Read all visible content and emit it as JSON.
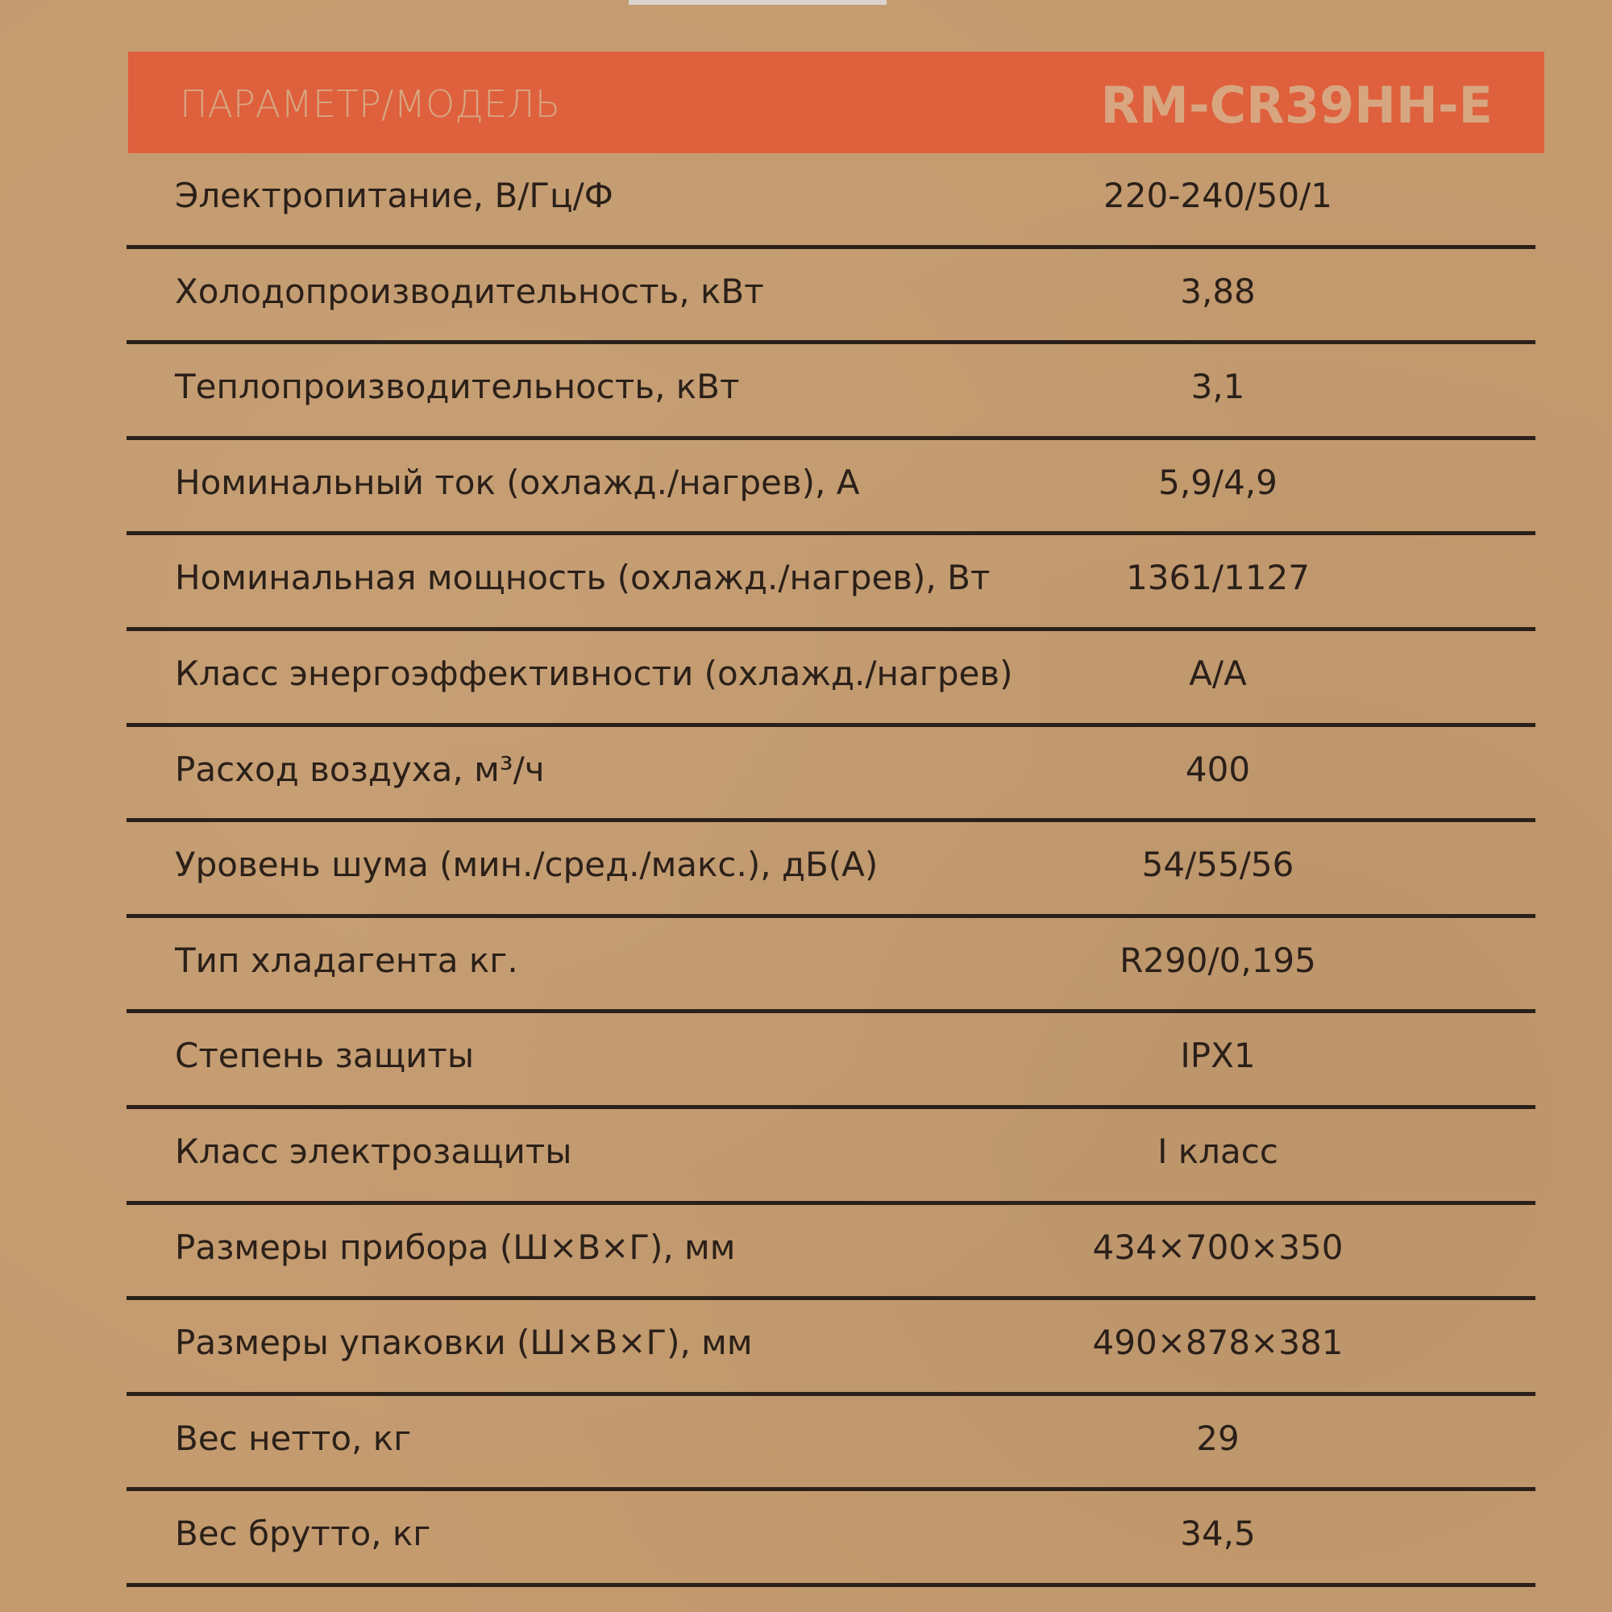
{
  "colors": {
    "background": "#c49b6f",
    "header": "#df603d",
    "header_text": "#d7a680",
    "text": "#2b2019"
  },
  "header": {
    "param_label": "ПАРАМЕТР/МОДЕЛЬ",
    "model": "RM-CR39HH-E"
  },
  "rows": [
    {
      "label": "Электропитание, В/Гц/Ф",
      "value": "220-240/50/1"
    },
    {
      "label": "Холодопроизводительность, кВт",
      "value": "3,88"
    },
    {
      "label": "Теплопроизводительность, кВт",
      "value": "3,1"
    },
    {
      "label": "Номинальный ток (охлажд./нагрев), А",
      "value": "5,9/4,9"
    },
    {
      "label": "Номинальная мощность (охлажд./нагрев), Вт",
      "value": "1361/1127"
    },
    {
      "label": "Класс энергоэффективности (охлажд./нагрев)",
      "value": "A/A"
    },
    {
      "label": "Расход воздуха, м³/ч",
      "value": "400"
    },
    {
      "label": "Уровень шума (мин./сред./макс.), дБ(А)",
      "value": "54/55/56"
    },
    {
      "label": "Тип хладагента кг.",
      "value": "R290/0,195"
    },
    {
      "label": "Степень защиты",
      "value": "IPX1"
    },
    {
      "label": "Класс электрозащиты",
      "value": "I класс"
    },
    {
      "label": "Размеры прибора (Ш×В×Г), мм",
      "value": "434×700×350"
    },
    {
      "label": "Размеры упаковки (Ш×В×Г), мм",
      "value": "490×878×381"
    },
    {
      "label": "Вес нетто, кг",
      "value": "29"
    },
    {
      "label": "Вес брутто, кг",
      "value": "34,5"
    }
  ]
}
